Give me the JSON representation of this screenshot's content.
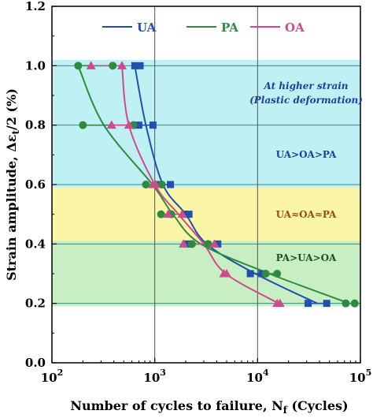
{
  "chart_data": {
    "type": "scatter",
    "title": "",
    "xlabel_main": "Number of cycles to failure, N",
    "xlabel_sub": "f",
    "xlabel_unit": " (Cycles)",
    "ylabel_main": "Strain amplitude, Δε",
    "ylabel_sub": "t",
    "ylabel_unit": "/2 (%)",
    "x_scale": "log",
    "xlim": [
      100,
      100000
    ],
    "ylim": [
      0.0,
      1.2
    ],
    "x_ticks": [
      {
        "value": 100,
        "base": "10",
        "exp": "2"
      },
      {
        "value": 1000,
        "base": "10",
        "exp": "3"
      },
      {
        "value": 10000,
        "base": "10",
        "exp": "4"
      },
      {
        "value": 100000,
        "base": "10",
        "exp": "5"
      }
    ],
    "y_ticks": [
      "0.0",
      "0.2",
      "0.4",
      "0.6",
      "0.8",
      "1.0",
      "1.2"
    ],
    "vertical_gridlines": [
      1000,
      10000
    ],
    "horizontal_gridlines": [
      0.2,
      0.4,
      0.6,
      0.8,
      1.0
    ],
    "legend_position": "top-center",
    "regions": [
      {
        "y0": 0.59,
        "y1": 1.02,
        "color": "#bff0f3",
        "lines": [
          "At higher strain",
          "(Plastic deformation)",
          "UA>OA>PA"
        ]
      },
      {
        "y0": 0.41,
        "y1": 0.59,
        "color": "#fbf5a8",
        "lines": [
          "UA≈OA≈PA"
        ]
      },
      {
        "y0": 0.19,
        "y1": 0.41,
        "color": "#c8efc4",
        "lines": [
          "PA>UA>OA"
        ]
      }
    ],
    "series": [
      {
        "name": "UA",
        "color": "#1f4fb0",
        "marker": "square",
        "points": [
          {
            "x": 640,
            "y": 1.0
          },
          {
            "x": 720,
            "y": 1.0
          },
          {
            "x": 700,
            "y": 0.8
          },
          {
            "x": 960,
            "y": 0.8
          },
          {
            "x": 1130,
            "y": 0.6
          },
          {
            "x": 1420,
            "y": 0.6
          },
          {
            "x": 1950,
            "y": 0.5
          },
          {
            "x": 2150,
            "y": 0.5
          },
          {
            "x": 2050,
            "y": 0.4
          },
          {
            "x": 4100,
            "y": 0.4
          },
          {
            "x": 8500,
            "y": 0.3
          },
          {
            "x": 11000,
            "y": 0.3
          },
          {
            "x": 31000,
            "y": 0.2
          },
          {
            "x": 47000,
            "y": 0.2
          }
        ],
        "fit": [
          {
            "x": 640,
            "y": 1.0
          },
          {
            "x": 820,
            "y": 0.8
          },
          {
            "x": 1200,
            "y": 0.6
          },
          {
            "x": 2000,
            "y": 0.5
          },
          {
            "x": 3200,
            "y": 0.4
          },
          {
            "x": 9500,
            "y": 0.3
          },
          {
            "x": 38000,
            "y": 0.2
          }
        ]
      },
      {
        "name": "PA",
        "color": "#2e8b3e",
        "marker": "circle",
        "points": [
          {
            "x": 180,
            "y": 1.0
          },
          {
            "x": 390,
            "y": 1.0
          },
          {
            "x": 200,
            "y": 0.8
          },
          {
            "x": 620,
            "y": 0.8
          },
          {
            "x": 820,
            "y": 0.6
          },
          {
            "x": 1170,
            "y": 0.6
          },
          {
            "x": 1150,
            "y": 0.5
          },
          {
            "x": 1450,
            "y": 0.5
          },
          {
            "x": 2300,
            "y": 0.4
          },
          {
            "x": 3300,
            "y": 0.4
          },
          {
            "x": 12000,
            "y": 0.3
          },
          {
            "x": 15500,
            "y": 0.3
          },
          {
            "x": 72000,
            "y": 0.2
          },
          {
            "x": 88000,
            "y": 0.2
          }
        ],
        "fit": [
          {
            "x": 180,
            "y": 1.0
          },
          {
            "x": 320,
            "y": 0.8
          },
          {
            "x": 950,
            "y": 0.6
          },
          {
            "x": 1500,
            "y": 0.5
          },
          {
            "x": 2800,
            "y": 0.4
          },
          {
            "x": 13000,
            "y": 0.3
          },
          {
            "x": 78000,
            "y": 0.2
          }
        ]
      },
      {
        "name": "OA",
        "color": "#d04a8b",
        "marker": "triangle",
        "points": [
          {
            "x": 240,
            "y": 1.0
          },
          {
            "x": 480,
            "y": 1.0
          },
          {
            "x": 380,
            "y": 0.8
          },
          {
            "x": 560,
            "y": 0.8
          },
          {
            "x": 960,
            "y": 0.6
          },
          {
            "x": 1020,
            "y": 0.6
          },
          {
            "x": 1350,
            "y": 0.5
          },
          {
            "x": 1850,
            "y": 0.5
          },
          {
            "x": 1900,
            "y": 0.4
          },
          {
            "x": 3800,
            "y": 0.4
          },
          {
            "x": 4700,
            "y": 0.3
          },
          {
            "x": 5000,
            "y": 0.3
          },
          {
            "x": 15500,
            "y": 0.2
          },
          {
            "x": 16500,
            "y": 0.2
          }
        ],
        "fit": [
          {
            "x": 480,
            "y": 1.0
          },
          {
            "x": 560,
            "y": 0.8
          },
          {
            "x": 1000,
            "y": 0.6
          },
          {
            "x": 1700,
            "y": 0.5
          },
          {
            "x": 3000,
            "y": 0.4
          },
          {
            "x": 4900,
            "y": 0.3
          },
          {
            "x": 16000,
            "y": 0.2
          }
        ]
      }
    ]
  }
}
